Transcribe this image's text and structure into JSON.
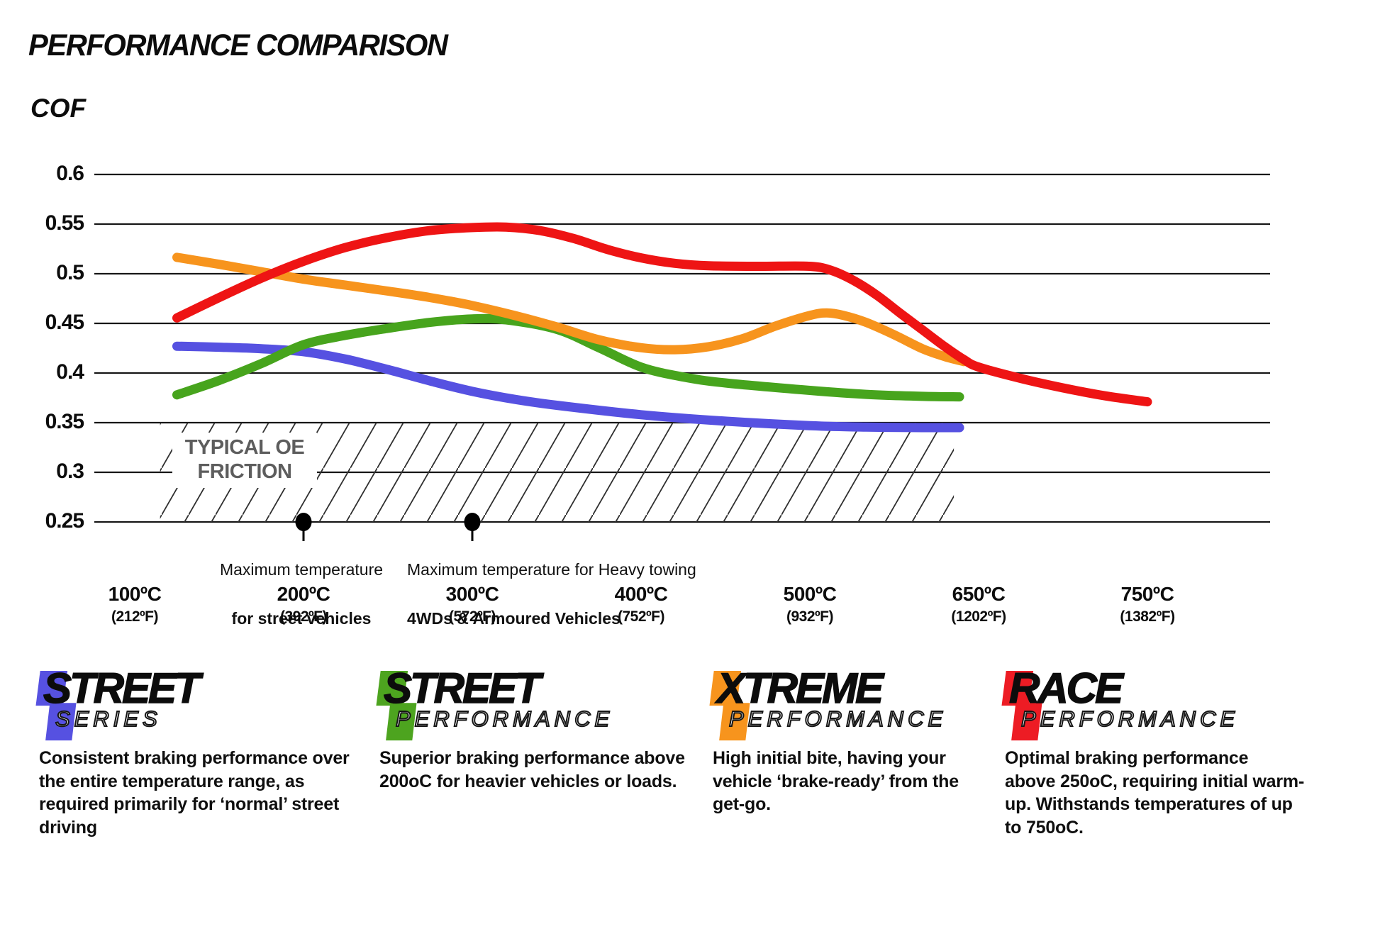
{
  "page": {
    "title": "PERFORMANCE COMPARISON"
  },
  "chart_data": {
    "type": "line",
    "title": "PERFORMANCE COMPARISON",
    "xlabel": "",
    "ylabel": "COF",
    "grid": "horizontal",
    "legend_position": "none",
    "ylim": [
      0.25,
      0.6
    ],
    "y_ticks": [
      {
        "value": 0.6,
        "label": "0.6"
      },
      {
        "value": 0.55,
        "label": "0.55"
      },
      {
        "value": 0.5,
        "label": "0.5"
      },
      {
        "value": 0.45,
        "label": "0.45"
      },
      {
        "value": 0.4,
        "label": "0.4"
      },
      {
        "value": 0.35,
        "label": "0.35"
      },
      {
        "value": 0.3,
        "label": "0.3"
      },
      {
        "value": 0.25,
        "label": "0.25"
      }
    ],
    "x_ticks": [
      {
        "temp_c": 100,
        "label_c": "100ºC",
        "label_f": "(212ºF)"
      },
      {
        "temp_c": 200,
        "label_c": "200ºC",
        "label_f": "(392ºF)"
      },
      {
        "temp_c": 300,
        "label_c": "300ºC",
        "label_f": "(572ºF)"
      },
      {
        "temp_c": 400,
        "label_c": "400ºC",
        "label_f": "(752ºF)"
      },
      {
        "temp_c": 500,
        "label_c": "500ºC",
        "label_f": "(932ºF)"
      },
      {
        "temp_c": 650,
        "label_c": "650ºC",
        "label_f": "(1202ºF)"
      },
      {
        "temp_c": 750,
        "label_c": "750ºC",
        "label_f": "(1382ºF)"
      }
    ],
    "series": [
      {
        "name": "Street Series",
        "color": "#5651e1",
        "points": [
          [
            125,
            0.427
          ],
          [
            150,
            0.426
          ],
          [
            175,
            0.4245
          ],
          [
            200,
            0.4215
          ],
          [
            225,
            0.414
          ],
          [
            250,
            0.4035
          ],
          [
            275,
            0.392
          ],
          [
            300,
            0.3815
          ],
          [
            325,
            0.3735
          ],
          [
            350,
            0.3675
          ],
          [
            400,
            0.358
          ],
          [
            450,
            0.3515
          ],
          [
            500,
            0.347
          ],
          [
            550,
            0.3455
          ],
          [
            600,
            0.345
          ],
          [
            633,
            0.345
          ]
        ]
      },
      {
        "name": "Street Performance",
        "color": "#47a41d",
        "points": [
          [
            125,
            0.378
          ],
          [
            150,
            0.3925
          ],
          [
            175,
            0.4095
          ],
          [
            200,
            0.4285
          ],
          [
            225,
            0.438
          ],
          [
            250,
            0.445
          ],
          [
            275,
            0.451
          ],
          [
            300,
            0.4545
          ],
          [
            320,
            0.4535
          ],
          [
            350,
            0.444
          ],
          [
            375,
            0.4255
          ],
          [
            400,
            0.406
          ],
          [
            425,
            0.396
          ],
          [
            450,
            0.39
          ],
          [
            500,
            0.3825
          ],
          [
            550,
            0.3785
          ],
          [
            600,
            0.3765
          ],
          [
            633,
            0.376
          ]
        ]
      },
      {
        "name": "Xtreme Performance",
        "color": "#f7941d",
        "points": [
          [
            125,
            0.5165
          ],
          [
            150,
            0.5095
          ],
          [
            175,
            0.502
          ],
          [
            200,
            0.4945
          ],
          [
            225,
            0.4885
          ],
          [
            250,
            0.4825
          ],
          [
            275,
            0.476
          ],
          [
            300,
            0.468
          ],
          [
            325,
            0.458
          ],
          [
            350,
            0.4465
          ],
          [
            375,
            0.4335
          ],
          [
            400,
            0.4255
          ],
          [
            420,
            0.4235
          ],
          [
            440,
            0.4265
          ],
          [
            460,
            0.4345
          ],
          [
            480,
            0.4475
          ],
          [
            500,
            0.458
          ],
          [
            515,
            0.4605
          ],
          [
            530,
            0.458
          ],
          [
            550,
            0.451
          ],
          [
            575,
            0.4385
          ],
          [
            600,
            0.4245
          ],
          [
            620,
            0.4165
          ],
          [
            637,
            0.4115
          ]
        ]
      },
      {
        "name": "Race Performance",
        "color": "#ee1414",
        "points": [
          [
            125,
            0.4555
          ],
          [
            150,
            0.476
          ],
          [
            175,
            0.4955
          ],
          [
            200,
            0.5125
          ],
          [
            225,
            0.5265
          ],
          [
            250,
            0.5365
          ],
          [
            275,
            0.5435
          ],
          [
            300,
            0.5465
          ],
          [
            320,
            0.547
          ],
          [
            340,
            0.5435
          ],
          [
            360,
            0.5355
          ],
          [
            380,
            0.5245
          ],
          [
            400,
            0.516
          ],
          [
            420,
            0.5105
          ],
          [
            440,
            0.508
          ],
          [
            470,
            0.5075
          ],
          [
            500,
            0.5075
          ],
          [
            520,
            0.503
          ],
          [
            540,
            0.4925
          ],
          [
            560,
            0.478
          ],
          [
            580,
            0.4605
          ],
          [
            600,
            0.4435
          ],
          [
            620,
            0.4265
          ],
          [
            637,
            0.4135
          ],
          [
            650,
            0.406
          ],
          [
            675,
            0.3945
          ],
          [
            700,
            0.385
          ],
          [
            725,
            0.377
          ],
          [
            750,
            0.371
          ]
        ]
      }
    ],
    "oe_band": {
      "label": [
        "TYPICAL OE",
        "FRICTION"
      ],
      "cof_from": 0.25,
      "cof_to": 0.35,
      "temp_from": 115,
      "temp_to": 628
    },
    "annotations": [
      {
        "temp_c": 200,
        "cof": 0.25,
        "line1": "Maximum temperature",
        "line2": "for street vehicles"
      },
      {
        "temp_c": 300,
        "cof": 0.25,
        "line1": "Maximum temperature for Heavy towing",
        "line2": "4WDs & Armoured Vehicles"
      }
    ]
  },
  "brands": [
    {
      "word1": "STREET",
      "word2": "SERIES",
      "color": "#5651e1",
      "desc_lines": [
        "Consistent braking performance over",
        "the entire temperature range, as",
        "required primarily for ‘normal’ street",
        "driving"
      ]
    },
    {
      "word1": "STREET",
      "word2": "PERFORMANCE",
      "color": "#4da41f",
      "desc_lines": [
        "Superior braking performance above",
        "200oC for heavier vehicles or loads."
      ]
    },
    {
      "word1": "XTREME",
      "word2": "PERFORMANCE",
      "color": "#f7941d",
      "desc_lines": [
        "High initial bite, having your",
        "vehicle ‘brake-ready’ from the",
        "get-go."
      ]
    },
    {
      "word1": "RACE",
      "word2": "PERFORMANCE",
      "color": "#ed1c24",
      "desc_lines": [
        "Optimal braking performance",
        "above 250oC, requiring initial warm-",
        "up. Withstands temperatures of up",
        "to 750oC."
      ]
    }
  ]
}
